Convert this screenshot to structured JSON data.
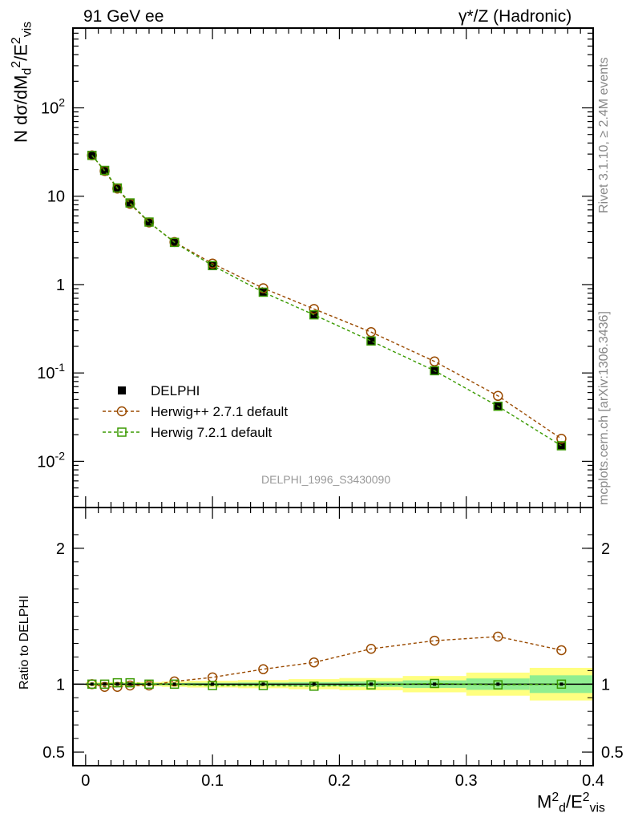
{
  "header": {
    "left": "91 GeV ee",
    "right": "γ*/Z (Hadronic)"
  },
  "side_text": {
    "rivet": "Rivet 3.1.10, ≥ 2.4M events",
    "mcplots": "mcplots.cern.ch [arXiv:1306.3436]"
  },
  "analysis_id": "DELPHI_1996_S3430090",
  "chart_data": [
    {
      "type": "scatter",
      "panel": "main",
      "title": "",
      "ylabel": "N dσ/dM_d^2/E_vis^2",
      "yscale": "log",
      "ylim": [
        0.003,
        800
      ],
      "xlim": [
        -0.01,
        0.4
      ],
      "y_ticks": [
        "10^{-2}",
        "10^{-1}",
        "1",
        "10",
        "10^{2}"
      ],
      "legend_position": "lower-left",
      "x": [
        0.005,
        0.015,
        0.025,
        0.035,
        0.05,
        0.07,
        0.1,
        0.14,
        0.18,
        0.225,
        0.275,
        0.325,
        0.375
      ],
      "series": [
        {
          "name": "DELPHI",
          "color": "#000000",
          "marker": "filled-square",
          "values": [
            29,
            19.5,
            12.3,
            8.3,
            5.1,
            3.0,
            1.65,
            0.82,
            0.46,
            0.23,
            0.105,
            0.042,
            0.015
          ]
        },
        {
          "name": "Herwig++ 2.7.1 default",
          "color": "#9a4a00",
          "marker": "open-circle",
          "line": "dashed",
          "values": [
            29,
            19.3,
            12.2,
            8.2,
            5.05,
            3.03,
            1.73,
            0.91,
            0.53,
            0.29,
            0.135,
            0.055,
            0.018
          ]
        },
        {
          "name": "Herwig 7.2.1 default",
          "color": "#3a9a00",
          "marker": "open-square",
          "line": "dashed",
          "values": [
            29,
            19.6,
            12.4,
            8.4,
            5.1,
            3.0,
            1.64,
            0.82,
            0.455,
            0.23,
            0.106,
            0.042,
            0.015
          ]
        }
      ]
    },
    {
      "type": "scatter",
      "panel": "ratio",
      "ylabel": "Ratio to DELPHI",
      "xlabel": "M_d^2/E_vis^2",
      "ylim": [
        0.4,
        2.3
      ],
      "xlim": [
        -0.01,
        0.4
      ],
      "y_ticks": [
        "0.5",
        "1",
        "2"
      ],
      "x_ticks": [
        "0",
        "0.1",
        "0.2",
        "0.3",
        "0.4"
      ],
      "x": [
        0.005,
        0.015,
        0.025,
        0.035,
        0.05,
        0.07,
        0.1,
        0.14,
        0.18,
        0.225,
        0.275,
        0.325,
        0.375
      ],
      "bands": {
        "bins": [
          [
            0,
            0.01
          ],
          [
            0.01,
            0.02
          ],
          [
            0.02,
            0.03
          ],
          [
            0.03,
            0.04
          ],
          [
            0.04,
            0.06
          ],
          [
            0.06,
            0.08
          ],
          [
            0.08,
            0.12
          ],
          [
            0.12,
            0.16
          ],
          [
            0.16,
            0.2
          ],
          [
            0.2,
            0.25
          ],
          [
            0.25,
            0.3
          ],
          [
            0.3,
            0.35
          ],
          [
            0.35,
            0.4
          ]
        ],
        "stat_colors": "#90ee90",
        "total_colors": "#ffff80",
        "stat_half": [
          0.008,
          0.008,
          0.008,
          0.008,
          0.008,
          0.008,
          0.01,
          0.012,
          0.015,
          0.02,
          0.028,
          0.042,
          0.065
        ],
        "total_half": [
          0.015,
          0.015,
          0.015,
          0.015,
          0.015,
          0.02,
          0.025,
          0.03,
          0.037,
          0.045,
          0.06,
          0.085,
          0.12
        ]
      },
      "series": [
        {
          "name": "Herwig++ 2.7.1 default",
          "color": "#9a4a00",
          "marker": "open-circle",
          "line": "dashed",
          "values": [
            1.0,
            0.98,
            0.98,
            0.99,
            0.99,
            1.02,
            1.05,
            1.11,
            1.16,
            1.26,
            1.32,
            1.35,
            1.25
          ]
        },
        {
          "name": "Herwig 7.2.1 default",
          "color": "#3a9a00",
          "marker": "open-square",
          "line": "dashed",
          "values": [
            1.0,
            1.0,
            1.01,
            1.01,
            1.0,
            1.0,
            0.99,
            0.99,
            0.985,
            0.995,
            1.005,
            0.995,
            1.0
          ]
        }
      ]
    }
  ]
}
